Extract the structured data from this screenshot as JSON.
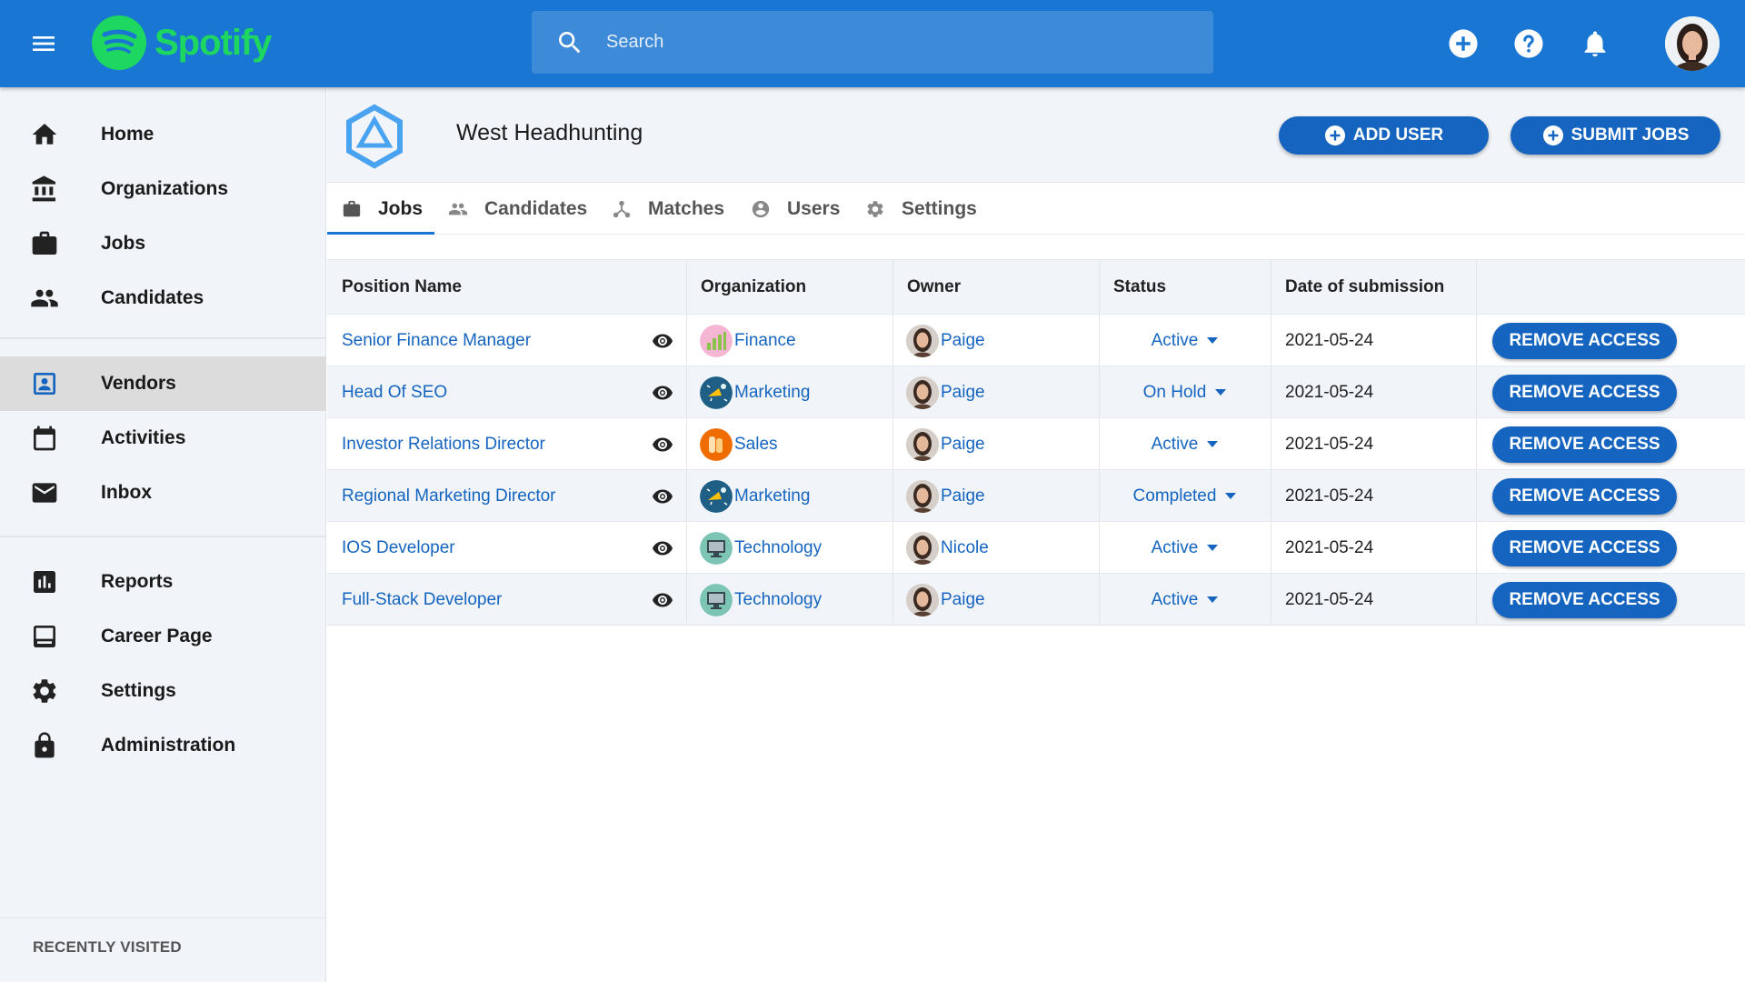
{
  "app": {
    "brand": "Spotify",
    "brand_color": "#1ed760",
    "accent": "#1976d2"
  },
  "search": {
    "placeholder": "Search",
    "icon": "search-icon"
  },
  "topbar_icons": [
    "add-circle-icon",
    "help-icon",
    "bell-icon"
  ],
  "sidebar": {
    "groups": [
      [
        {
          "label": "Home",
          "icon": "home-icon"
        },
        {
          "label": "Organizations",
          "icon": "bank-icon"
        },
        {
          "label": "Jobs",
          "icon": "briefcase-icon"
        },
        {
          "label": "Candidates",
          "icon": "people-icon"
        }
      ],
      [
        {
          "label": "Vendors",
          "icon": "contact-card-icon",
          "active": true
        },
        {
          "label": "Activities",
          "icon": "calendar-icon"
        },
        {
          "label": "Inbox",
          "icon": "mail-icon"
        }
      ],
      [
        {
          "label": "Reports",
          "icon": "bar-chart-icon"
        },
        {
          "label": "Career Page",
          "icon": "web-page-icon"
        },
        {
          "label": "Settings",
          "icon": "gear-icon"
        },
        {
          "label": "Administration",
          "icon": "lock-icon"
        }
      ]
    ],
    "recently_visited": "RECENTLY VISITED"
  },
  "header": {
    "org_name": "West Headhunting",
    "add_user": "ADD USER",
    "submit_jobs": "SUBMIT JOBS"
  },
  "tabs": [
    {
      "label": "Jobs",
      "icon": "briefcase-icon",
      "active": true
    },
    {
      "label": "Candidates",
      "icon": "people-icon"
    },
    {
      "label": "Matches",
      "icon": "merge-icon"
    },
    {
      "label": "Users",
      "icon": "account-circle-icon"
    },
    {
      "label": "Settings",
      "icon": "gear-icon"
    }
  ],
  "table": {
    "columns": [
      "Position Name",
      "Organization",
      "Owner",
      "Status",
      "Date of submission",
      ""
    ],
    "rows": [
      {
        "position": "Senior Finance Manager",
        "organization": "Finance",
        "org_icon": "finance-icon",
        "owner": "Paige",
        "status": "Active",
        "date": "2021-05-24",
        "action": "REMOVE ACCESS"
      },
      {
        "position": "Head Of SEO",
        "organization": "Marketing",
        "org_icon": "marketing-icon",
        "owner": "Paige",
        "status": "On Hold",
        "date": "2021-05-24",
        "action": "REMOVE ACCESS"
      },
      {
        "position": "Investor Relations Director",
        "organization": "Sales",
        "org_icon": "sales-icon",
        "owner": "Paige",
        "status": "Active",
        "date": "2021-05-24",
        "action": "REMOVE ACCESS"
      },
      {
        "position": "Regional Marketing Director",
        "organization": "Marketing",
        "org_icon": "marketing-icon",
        "owner": "Paige",
        "status": "Completed",
        "date": "2021-05-24",
        "action": "REMOVE ACCESS"
      },
      {
        "position": "IOS Developer",
        "organization": "Technology",
        "org_icon": "technology-icon",
        "owner": "Nicole",
        "status": "Active",
        "date": "2021-05-24",
        "action": "REMOVE ACCESS"
      },
      {
        "position": "Full-Stack Developer",
        "organization": "Technology",
        "org_icon": "technology-icon",
        "owner": "Paige",
        "status": "Active",
        "date": "2021-05-24",
        "action": "REMOVE ACCESS"
      }
    ]
  }
}
